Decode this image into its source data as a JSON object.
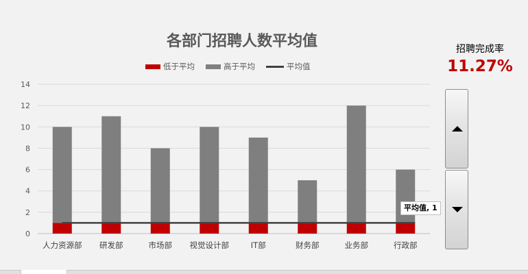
{
  "chart_data": {
    "type": "bar",
    "title": "各部门招聘人数平均值",
    "categories": [
      "人力资源部",
      "研发部",
      "市场部",
      "视觉设计部",
      "IT部",
      "财务部",
      "业务部",
      "行政部"
    ],
    "series": [
      {
        "name": "低于平均",
        "values": [
          1,
          1,
          1,
          1,
          1,
          1,
          1,
          1
        ],
        "color": "#c00000"
      },
      {
        "name": "高于平均",
        "values": [
          9,
          10,
          7,
          9,
          8,
          4,
          11,
          5
        ],
        "color": "#7f7f7f"
      },
      {
        "name": "平均值",
        "type": "line",
        "values": [
          1,
          1,
          1,
          1,
          1,
          1,
          1,
          1
        ],
        "color": "#404040"
      }
    ],
    "stacked": true,
    "ylim": [
      0,
      14
    ],
    "yticks": [
      0,
      2,
      4,
      6,
      8,
      10,
      12,
      14
    ],
    "grid": true,
    "legend_position": "top",
    "data_label": {
      "text": "平均值, 1",
      "category": "行政部"
    }
  },
  "kpi": {
    "label": "招聘完成率",
    "value": "11.27%",
    "color": "#c00000"
  },
  "spinner": {
    "up_icon": "triangle-up-icon",
    "down_icon": "triangle-down-icon"
  }
}
